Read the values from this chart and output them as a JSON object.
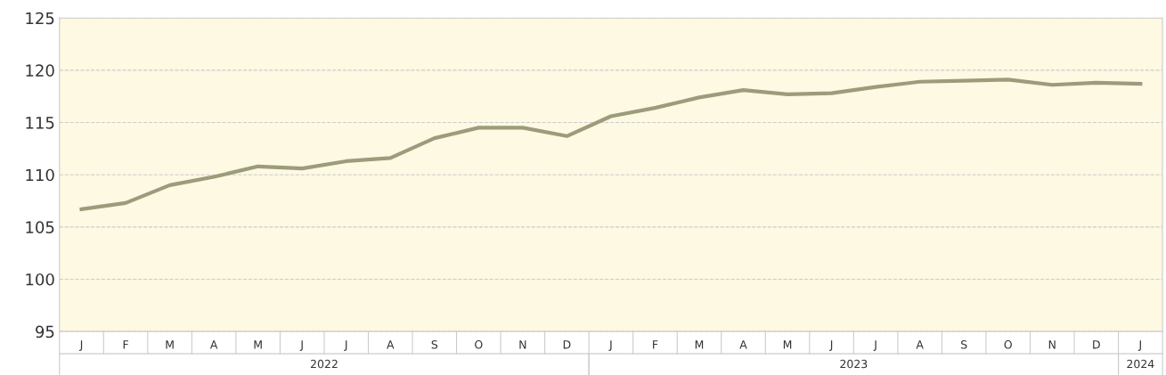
{
  "chart_data": {
    "type": "line",
    "categories": [
      "J",
      "F",
      "M",
      "A",
      "M",
      "J",
      "J",
      "A",
      "S",
      "O",
      "N",
      "D",
      "J",
      "F",
      "M",
      "A",
      "M",
      "J",
      "J",
      "A",
      "S",
      "O",
      "N",
      "D",
      "J"
    ],
    "series": [
      {
        "color": "#9c9c7c",
        "values": [
          106.7,
          107.3,
          109.0,
          109.8,
          110.8,
          110.6,
          111.3,
          111.6,
          113.5,
          114.5,
          114.5,
          113.7,
          115.6,
          116.4,
          117.4,
          118.1,
          117.7,
          117.8,
          118.4,
          118.9,
          119.0,
          119.1,
          118.6,
          118.8,
          118.7
        ]
      }
    ],
    "annotations": [
      "2022",
      "2023",
      "2024"
    ],
    "ylim": [
      95,
      125
    ],
    "yticks": [
      95,
      100,
      105,
      110,
      115,
      120,
      125
    ],
    "grid": "y",
    "legend": false,
    "marker": "none",
    "line_style": "solid"
  }
}
